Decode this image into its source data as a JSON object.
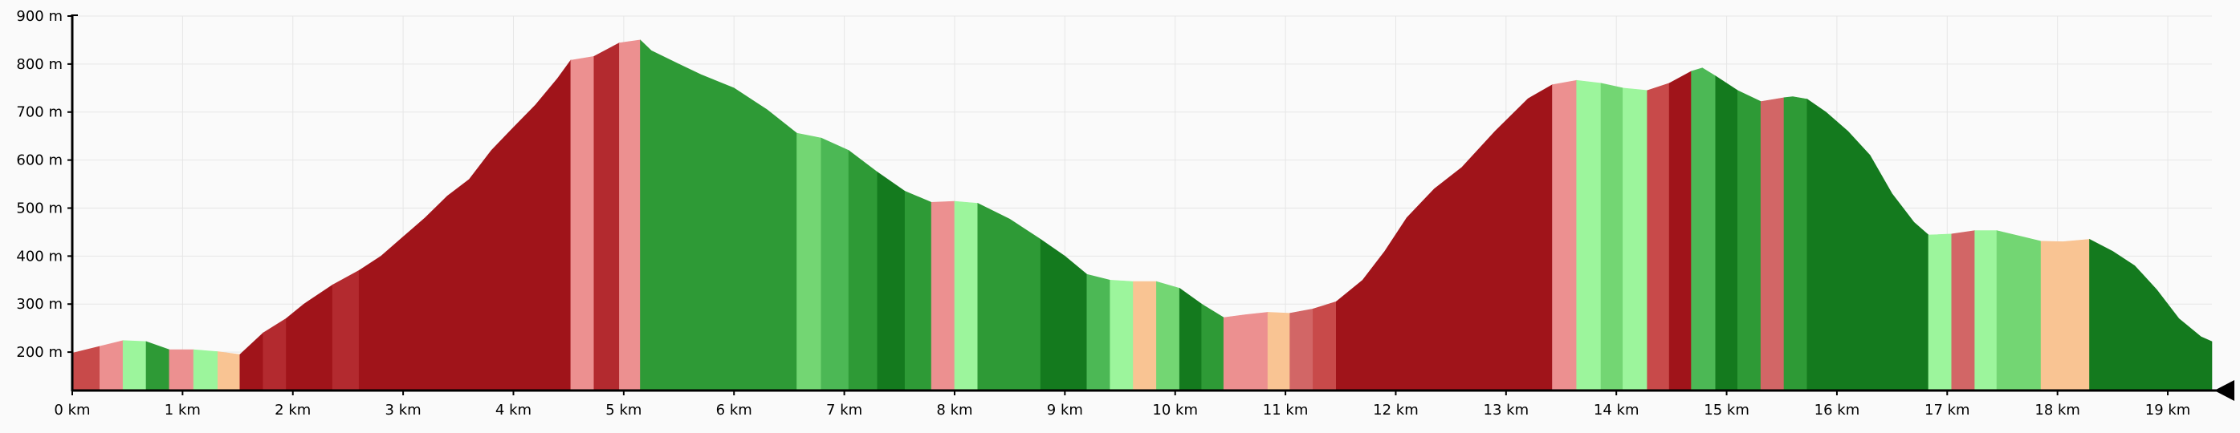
{
  "chart_data": {
    "type": "area",
    "title": "",
    "xlabel": "",
    "ylabel": "",
    "x_unit": "km",
    "y_unit": "m",
    "xlim": [
      0,
      19.4
    ],
    "ylim": [
      120,
      900
    ],
    "x_ticks": [
      {
        "value": 0,
        "label": "0 km"
      },
      {
        "value": 1,
        "label": "1 km"
      },
      {
        "value": 2,
        "label": "2 km"
      },
      {
        "value": 3,
        "label": "3 km"
      },
      {
        "value": 4,
        "label": "4 km"
      },
      {
        "value": 5,
        "label": "5 km"
      },
      {
        "value": 6,
        "label": "6 km"
      },
      {
        "value": 7,
        "label": "7 km"
      },
      {
        "value": 8,
        "label": "8 km"
      },
      {
        "value": 9,
        "label": "9 km"
      },
      {
        "value": 10,
        "label": "10 km"
      },
      {
        "value": 11,
        "label": "11 km"
      },
      {
        "value": 12,
        "label": "12 km"
      },
      {
        "value": 13,
        "label": "13 km"
      },
      {
        "value": 14,
        "label": "14 km"
      },
      {
        "value": 15,
        "label": "15 km"
      },
      {
        "value": 16,
        "label": "16 km"
      },
      {
        "value": 17,
        "label": "17 km"
      },
      {
        "value": 18,
        "label": "18 km"
      },
      {
        "value": 19,
        "label": "19 km"
      }
    ],
    "y_ticks": [
      {
        "value": 200,
        "label": "200 m"
      },
      {
        "value": 300,
        "label": "300 m"
      },
      {
        "value": 400,
        "label": "400 m"
      },
      {
        "value": 500,
        "label": "500 m"
      },
      {
        "value": 600,
        "label": "600 m"
      },
      {
        "value": 700,
        "label": "700 m"
      },
      {
        "value": 800,
        "label": "800 m"
      },
      {
        "value": 900,
        "label": "900 m"
      }
    ],
    "grid": true,
    "fill_by_gradient": true,
    "segments": [
      {
        "x": [
          0.0,
          0.25
        ],
        "y": [
          198,
          212
        ],
        "color": "#c84a4a"
      },
      {
        "x": [
          0.25,
          0.46
        ],
        "y": [
          212,
          224
        ],
        "color": "#ec9090"
      },
      {
        "x": [
          0.46,
          0.67
        ],
        "y": [
          224,
          222
        ],
        "color": "#9cf59c"
      },
      {
        "x": [
          0.67,
          0.88
        ],
        "y": [
          222,
          205
        ],
        "color": "#2e9a36"
      },
      {
        "x": [
          0.88,
          1.1
        ],
        "y": [
          205,
          205
        ],
        "color": "#ec9090"
      },
      {
        "x": [
          1.1,
          1.32
        ],
        "y": [
          205,
          201
        ],
        "color": "#9cf59c"
      },
      {
        "x": [
          1.32,
          1.52
        ],
        "y": [
          201,
          195
        ],
        "color": "#f9c493"
      },
      {
        "x": [
          1.52,
          1.73
        ],
        "y": [
          195,
          240
        ],
        "color": "#a0141a"
      },
      {
        "x": [
          1.73,
          1.94
        ],
        "y": [
          240,
          270
        ],
        "color": "#b32a2f"
      },
      {
        "x": [
          1.94,
          2.36
        ],
        "y": [
          270,
          340
        ],
        "color": "#a0141a"
      },
      {
        "x": [
          2.36,
          2.6
        ],
        "y": [
          340,
          370
        ],
        "color": "#b32a2f"
      },
      {
        "x": [
          2.6,
          4.52
        ],
        "y": [
          370,
          808
        ],
        "color": "#a0141a"
      },
      {
        "x": [
          4.52,
          4.73
        ],
        "y": [
          808,
          816
        ],
        "color": "#ec9090"
      },
      {
        "x": [
          4.73,
          4.96
        ],
        "y": [
          816,
          844
        ],
        "color": "#b32a2f"
      },
      {
        "x": [
          4.96,
          5.15
        ],
        "y": [
          844,
          850
        ],
        "color": "#ec9090"
      },
      {
        "x": [
          5.15,
          6.57
        ],
        "y": [
          850,
          656
        ],
        "color": "#2e9a36"
      },
      {
        "x": [
          6.57,
          6.79
        ],
        "y": [
          656,
          646
        ],
        "color": "#73d673"
      },
      {
        "x": [
          6.79,
          7.04
        ],
        "y": [
          646,
          620
        ],
        "color": "#4cb855"
      },
      {
        "x": [
          7.04,
          7.3
        ],
        "y": [
          620,
          575
        ],
        "color": "#2e9a36"
      },
      {
        "x": [
          7.3,
          7.55
        ],
        "y": [
          575,
          535
        ],
        "color": "#147a1e"
      },
      {
        "x": [
          7.55,
          7.79
        ],
        "y": [
          535,
          512
        ],
        "color": "#2e9a36"
      },
      {
        "x": [
          7.79,
          8.0
        ],
        "y": [
          512,
          514
        ],
        "color": "#ec9090"
      },
      {
        "x": [
          8.0,
          8.21
        ],
        "y": [
          514,
          510
        ],
        "color": "#9cf59c"
      },
      {
        "x": [
          8.21,
          8.78
        ],
        "y": [
          510,
          435
        ],
        "color": "#2e9a36"
      },
      {
        "x": [
          8.78,
          9.2
        ],
        "y": [
          435,
          362
        ],
        "color": "#147a1e"
      },
      {
        "x": [
          9.2,
          9.41
        ],
        "y": [
          362,
          350
        ],
        "color": "#4cb855"
      },
      {
        "x": [
          9.41,
          9.62
        ],
        "y": [
          350,
          347
        ],
        "color": "#9cf59c"
      },
      {
        "x": [
          9.62,
          9.83
        ],
        "y": [
          347,
          347
        ],
        "color": "#f9c493"
      },
      {
        "x": [
          9.83,
          10.04
        ],
        "y": [
          347,
          333
        ],
        "color": "#73d673"
      },
      {
        "x": [
          10.04,
          10.24
        ],
        "y": [
          333,
          300
        ],
        "color": "#147a1e"
      },
      {
        "x": [
          10.24,
          10.44
        ],
        "y": [
          300,
          272
        ],
        "color": "#2e9a36"
      },
      {
        "x": [
          10.44,
          10.84
        ],
        "y": [
          272,
          283
        ],
        "color": "#ec9090"
      },
      {
        "x": [
          10.84,
          11.04
        ],
        "y": [
          283,
          281
        ],
        "color": "#f9c493"
      },
      {
        "x": [
          11.04,
          11.25
        ],
        "y": [
          281,
          290
        ],
        "color": "#d26666"
      },
      {
        "x": [
          11.25,
          11.46
        ],
        "y": [
          290,
          305
        ],
        "color": "#c84a4a"
      },
      {
        "x": [
          11.46,
          13.42
        ],
        "y": [
          305,
          757
        ],
        "color": "#a0141a"
      },
      {
        "x": [
          13.42,
          13.64
        ],
        "y": [
          757,
          766
        ],
        "color": "#ec9090"
      },
      {
        "x": [
          13.64,
          13.86
        ],
        "y": [
          766,
          760
        ],
        "color": "#9cf59c"
      },
      {
        "x": [
          13.86,
          14.06
        ],
        "y": [
          760,
          750
        ],
        "color": "#73d673"
      },
      {
        "x": [
          14.06,
          14.28
        ],
        "y": [
          750,
          745
        ],
        "color": "#9cf59c"
      },
      {
        "x": [
          14.28,
          14.48
        ],
        "y": [
          745,
          760
        ],
        "color": "#c84a4a"
      },
      {
        "x": [
          14.48,
          14.68
        ],
        "y": [
          760,
          785
        ],
        "color": "#a0141a"
      },
      {
        "x": [
          14.68,
          14.9
        ],
        "y": [
          785,
          775
        ],
        "color": "#4cb855"
      },
      {
        "x": [
          14.9,
          15.1
        ],
        "y": [
          775,
          745
        ],
        "color": "#147a1e"
      },
      {
        "x": [
          15.1,
          15.31
        ],
        "y": [
          745,
          722
        ],
        "color": "#2e9a36"
      },
      {
        "x": [
          15.31,
          15.52
        ],
        "y": [
          722,
          730
        ],
        "color": "#d26666"
      },
      {
        "x": [
          15.52,
          15.73
        ],
        "y": [
          730,
          727
        ],
        "color": "#2e9a36"
      },
      {
        "x": [
          15.73,
          16.83
        ],
        "y": [
          727,
          444
        ],
        "color": "#147a1e"
      },
      {
        "x": [
          16.83,
          17.04
        ],
        "y": [
          444,
          446
        ],
        "color": "#9cf59c"
      },
      {
        "x": [
          17.04,
          17.25
        ],
        "y": [
          446,
          453
        ],
        "color": "#d26666"
      },
      {
        "x": [
          17.25,
          17.45
        ],
        "y": [
          453,
          453
        ],
        "color": "#9cf59c"
      },
      {
        "x": [
          17.45,
          17.85
        ],
        "y": [
          453,
          431
        ],
        "color": "#73d673"
      },
      {
        "x": [
          17.85,
          18.29
        ],
        "y": [
          431,
          435
        ],
        "color": "#f9c493"
      },
      {
        "x": [
          18.29,
          19.4
        ],
        "y": [
          435,
          222
        ],
        "color": "#147a1e"
      }
    ],
    "profile": [
      [
        0.0,
        198
      ],
      [
        0.25,
        212
      ],
      [
        0.46,
        224
      ],
      [
        0.67,
        222
      ],
      [
        0.88,
        205
      ],
      [
        1.1,
        205
      ],
      [
        1.32,
        201
      ],
      [
        1.52,
        195
      ],
      [
        1.73,
        240
      ],
      [
        1.94,
        270
      ],
      [
        2.1,
        300
      ],
      [
        2.36,
        340
      ],
      [
        2.6,
        370
      ],
      [
        2.8,
        400
      ],
      [
        3.0,
        440
      ],
      [
        3.2,
        480
      ],
      [
        3.4,
        525
      ],
      [
        3.6,
        560
      ],
      [
        3.8,
        620
      ],
      [
        4.0,
        668
      ],
      [
        4.2,
        715
      ],
      [
        4.4,
        770
      ],
      [
        4.52,
        808
      ],
      [
        4.73,
        816
      ],
      [
        4.96,
        844
      ],
      [
        5.15,
        850
      ],
      [
        5.25,
        828
      ],
      [
        5.5,
        800
      ],
      [
        5.7,
        778
      ],
      [
        6.0,
        750
      ],
      [
        6.3,
        705
      ],
      [
        6.57,
        656
      ],
      [
        6.79,
        646
      ],
      [
        7.04,
        620
      ],
      [
        7.3,
        575
      ],
      [
        7.55,
        535
      ],
      [
        7.79,
        512
      ],
      [
        8.0,
        514
      ],
      [
        8.21,
        510
      ],
      [
        8.5,
        477
      ],
      [
        8.78,
        435
      ],
      [
        9.0,
        400
      ],
      [
        9.2,
        362
      ],
      [
        9.41,
        350
      ],
      [
        9.62,
        347
      ],
      [
        9.83,
        347
      ],
      [
        10.04,
        333
      ],
      [
        10.24,
        300
      ],
      [
        10.44,
        272
      ],
      [
        10.64,
        278
      ],
      [
        10.84,
        283
      ],
      [
        11.04,
        281
      ],
      [
        11.25,
        290
      ],
      [
        11.46,
        305
      ],
      [
        11.7,
        350
      ],
      [
        11.9,
        410
      ],
      [
        12.1,
        480
      ],
      [
        12.35,
        540
      ],
      [
        12.6,
        585
      ],
      [
        12.9,
        660
      ],
      [
        13.2,
        728
      ],
      [
        13.42,
        757
      ],
      [
        13.64,
        766
      ],
      [
        13.86,
        760
      ],
      [
        14.06,
        750
      ],
      [
        14.28,
        745
      ],
      [
        14.48,
        760
      ],
      [
        14.68,
        785
      ],
      [
        14.78,
        792
      ],
      [
        14.9,
        775
      ],
      [
        15.1,
        745
      ],
      [
        15.31,
        722
      ],
      [
        15.52,
        730
      ],
      [
        15.6,
        732
      ],
      [
        15.73,
        727
      ],
      [
        15.9,
        700
      ],
      [
        16.1,
        660
      ],
      [
        16.3,
        610
      ],
      [
        16.5,
        530
      ],
      [
        16.7,
        470
      ],
      [
        16.83,
        444
      ],
      [
        17.04,
        446
      ],
      [
        17.25,
        453
      ],
      [
        17.45,
        453
      ],
      [
        17.65,
        442
      ],
      [
        17.85,
        431
      ],
      [
        18.05,
        430
      ],
      [
        18.29,
        435
      ],
      [
        18.5,
        410
      ],
      [
        18.7,
        380
      ],
      [
        18.9,
        330
      ],
      [
        19.1,
        270
      ],
      [
        19.3,
        232
      ],
      [
        19.4,
        222
      ]
    ],
    "marker_x": 19.4
  }
}
